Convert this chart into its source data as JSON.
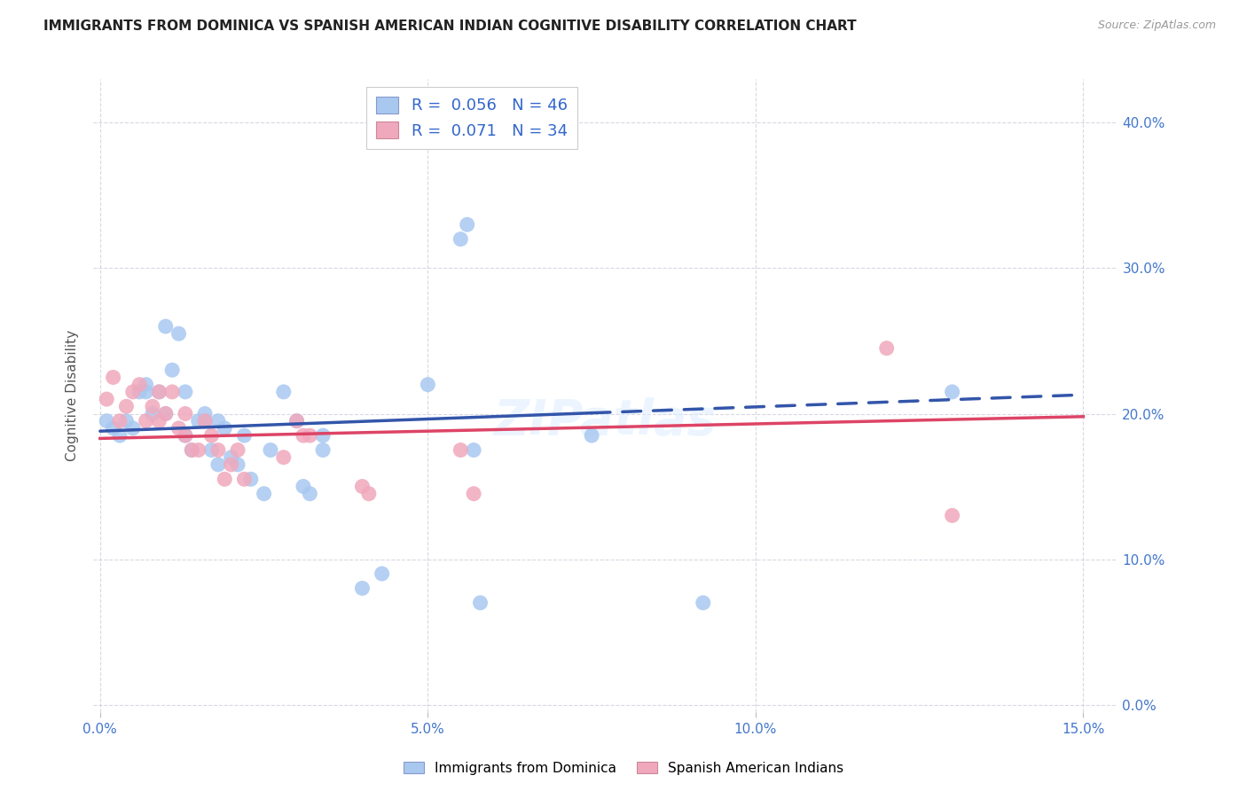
{
  "title": "IMMIGRANTS FROM DOMINICA VS SPANISH AMERICAN INDIAN COGNITIVE DISABILITY CORRELATION CHART",
  "source": "Source: ZipAtlas.com",
  "xlabel_tick_vals": [
    0.0,
    0.05,
    0.1,
    0.15
  ],
  "xlabel_tick_labels": [
    "0.0%",
    "5.0%",
    "10.0%",
    "15.0%"
  ],
  "ylabel_tick_vals": [
    0.0,
    0.1,
    0.2,
    0.3,
    0.4
  ],
  "ylabel_tick_labels": [
    "0.0%",
    "10.0%",
    "20.0%",
    "30.0%",
    "40.0%"
  ],
  "xlim": [
    -0.001,
    0.155
  ],
  "ylim": [
    -0.005,
    0.43
  ],
  "legend1_label": "Immigrants from Dominica",
  "legend2_label": "Spanish American Indians",
  "r1": 0.056,
  "n1": 46,
  "r2": 0.071,
  "n2": 34,
  "color1": "#a8c8f0",
  "color2": "#f0a8bc",
  "line1_color": "#3355aa",
  "line2_color": "#dd4466",
  "watermark": "ZIPatlas",
  "blue_x": [
    0.001,
    0.002,
    0.003,
    0.004,
    0.005,
    0.006,
    0.007,
    0.007,
    0.008,
    0.009,
    0.01,
    0.01,
    0.011,
    0.012,
    0.013,
    0.013,
    0.014,
    0.015,
    0.016,
    0.016,
    0.017,
    0.018,
    0.018,
    0.019,
    0.02,
    0.021,
    0.022,
    0.023,
    0.025,
    0.026,
    0.028,
    0.03,
    0.031,
    0.032,
    0.034,
    0.034,
    0.04,
    0.043,
    0.05,
    0.055,
    0.056,
    0.057,
    0.058,
    0.075,
    0.092,
    0.13
  ],
  "blue_y": [
    0.195,
    0.19,
    0.185,
    0.195,
    0.19,
    0.215,
    0.22,
    0.215,
    0.2,
    0.215,
    0.26,
    0.2,
    0.23,
    0.255,
    0.215,
    0.185,
    0.175,
    0.195,
    0.2,
    0.195,
    0.175,
    0.165,
    0.195,
    0.19,
    0.17,
    0.165,
    0.185,
    0.155,
    0.145,
    0.175,
    0.215,
    0.195,
    0.15,
    0.145,
    0.185,
    0.175,
    0.08,
    0.09,
    0.22,
    0.32,
    0.33,
    0.175,
    0.07,
    0.185,
    0.07,
    0.215
  ],
  "pink_x": [
    0.001,
    0.002,
    0.003,
    0.004,
    0.005,
    0.006,
    0.007,
    0.008,
    0.009,
    0.009,
    0.01,
    0.011,
    0.012,
    0.013,
    0.013,
    0.014,
    0.015,
    0.016,
    0.017,
    0.018,
    0.019,
    0.02,
    0.021,
    0.022,
    0.028,
    0.03,
    0.031,
    0.032,
    0.04,
    0.041,
    0.055,
    0.057,
    0.12,
    0.13
  ],
  "pink_y": [
    0.21,
    0.225,
    0.195,
    0.205,
    0.215,
    0.22,
    0.195,
    0.205,
    0.195,
    0.215,
    0.2,
    0.215,
    0.19,
    0.185,
    0.2,
    0.175,
    0.175,
    0.195,
    0.185,
    0.175,
    0.155,
    0.165,
    0.175,
    0.155,
    0.17,
    0.195,
    0.185,
    0.185,
    0.15,
    0.145,
    0.175,
    0.145,
    0.245,
    0.13
  ]
}
